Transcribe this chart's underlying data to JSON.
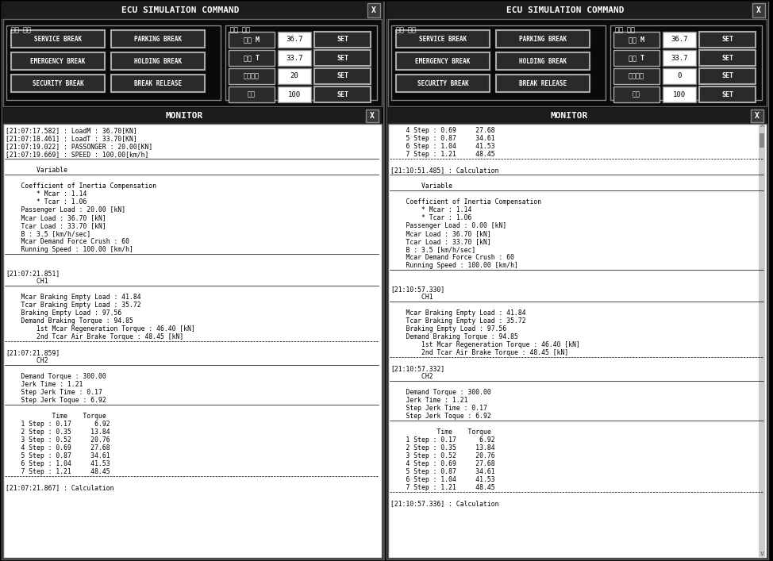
{
  "bg_color": "#000000",
  "panel_bg": "#1a1a1a",
  "text_color": "#ffffff",
  "button_color": "#2a2a2a",
  "button_border": "#888888",
  "input_bg": "#ffffff",
  "input_text": "#000000",
  "title_bg": "#1a1a1a",
  "monitor_bg": "#ffffff",
  "monitor_text": "#000000",
  "left_panel": {
    "title": "ECU SIMULATION COMMAND",
    "brake_group_label": "제동 종류",
    "load_group_label": "하중 종류",
    "buttons_left": [
      "SERVICE BREAK",
      "EMERGENCY BREAK",
      "SECURITY BREAK"
    ],
    "buttons_right": [
      "PARKING BREAK",
      "HOLDING BREAK",
      "BREAK RELEASE"
    ],
    "load_labels": [
      "하중 M",
      "하중 T",
      "승객하중",
      "속도"
    ],
    "load_values": [
      "36.7",
      "33.7",
      "20",
      "100"
    ],
    "set_label": "SET",
    "monitor_title": "MONITOR",
    "monitor_lines": [
      "[21:07:17.582] : LoadM : 36.70[KN]",
      "[21:07:18.461] : LoadT : 33.70[KN]",
      "[21:07:19.022] : PASSONGER : 20.00[KN]",
      "[21:07:19.669] : SPEED : 100.00[km/h]",
      "--------------------------------------------",
      "        Variable",
      "--------------------------------------------",
      "    Coefficient of Inertia Compensation",
      "        * Mcar : 1.14",
      "        * Tcar : 1.06",
      "    Passenger Load : 20.00 [kN]",
      "    Mcar Load : 36.70 [kN]",
      "    Tcar Load : 33.70 [kN]",
      "    B : 3.5 [km/h/sec]",
      "    Mcar Demand Force Crush : 60",
      "    Running Speed : 100.00 [km/h]",
      "--------------------------------------------",
      "",
      "[21:07:21.851]",
      "        CH1",
      "--------------------------------------------",
      "    Mcar Braking Empty Load : 41.84",
      "    Tcar Braking Empty Load : 35.72",
      "    Braking Empty Load : 97.56",
      "    Demand Braking Torque : 94.85",
      "        1st Mcar Regeneration Torque : 46.40 [kN]",
      "        2nd Tcar Air Brake Torque : 48.45 [kN]",
      "= = = = = = = = = = = = = = = = = = = = = = = = = = = = = =",
      "[21:07:21.859]",
      "        CH2",
      "--------------------------------------------",
      "    Demand Torque : 300.00",
      "    Jerk Time : 1.21",
      "    Step Jerk Time : 0.17",
      "    Step Jerk Toque : 6.92",
      "--------------------------------------------",
      "            Time    Torque",
      "    1 Step : 0.17      6.92",
      "    2 Step : 0.35     13.84",
      "    3 Step : 0.52     20.76",
      "    4 Step : 0.69     27.68",
      "    5 Step : 0.87     34.61",
      "    6 Step : 1.04     41.53",
      "    7 Step : 1.21     48.45",
      "= = = = = = = = = = = = = = = = = = = = = = = = = = = = = =",
      "[21:07:21.867] : Calculation"
    ]
  },
  "right_panel": {
    "title": "ECU SIMULATION COMMAND",
    "brake_group_label": "제동 종류",
    "load_group_label": "하중 종류",
    "buttons_left": [
      "SERVICE BREAK",
      "EMERGENCY BREAK",
      "SECURITY BREAK"
    ],
    "buttons_right": [
      "PARKING BREAK",
      "HOLDING BREAK",
      "BREAK RELEASE"
    ],
    "load_labels": [
      "하중 M",
      "하중 T",
      "승객하중",
      "속도"
    ],
    "load_values": [
      "36.7",
      "33.7",
      "0",
      "100"
    ],
    "set_label": "SET",
    "monitor_title": "MONITOR",
    "monitor_lines": [
      "    4 Step : 0.69     27.68",
      "    5 Step : 0.87     34.61",
      "    6 Step : 1.04     41.53",
      "    7 Step : 1.21     48.45",
      "= = = = = = = = = = = = = = = = = = = = = = = = = = = = = =",
      "[21:10:51.485] : Calculation",
      "--------------------------------------------",
      "        Variable",
      "--------------------------------------------",
      "    Coefficient of Inertia Compensation",
      "        * Mcar : 1.14",
      "        * Tcar : 1.06",
      "    Passenger Load : 0.00 [kN]",
      "    Mcar Load : 36.70 [kN]",
      "    Tcar Load : 33.70 [kN]",
      "    B : 3.5 [km/h/sec]",
      "    Mcar Demand Force Crush : 60",
      "    Running Speed : 100.00 [km/h]",
      "--------------------------------------------",
      "",
      "[21:10:57.330]",
      "        CH1",
      "--------------------------------------------",
      "    Mcar Braking Empty Load : 41.84",
      "    Tcar Braking Empty Load : 35.72",
      "    Braking Empty Load : 97.56",
      "    Demand Braking Torque : 94.85",
      "        1st Mcar Regeneration Torque : 46.40 [kN]",
      "        2nd Tcar Air Brake Torque : 48.45 [kN]",
      "= = = = = = = = = = = = = = = = = = = = = = = = = = = = = =",
      "[21:10:57.332]",
      "        CH2",
      "--------------------------------------------",
      "    Demand Torque : 300.00",
      "    Jerk Time : 1.21",
      "    Step Jerk Time : 0.17",
      "    Step Jerk Toque : 6.92",
      "--------------------------------------------",
      "            Time    Torque",
      "    1 Step : 0.17      6.92",
      "    2 Step : 0.35     13.84",
      "    3 Step : 0.52     20.76",
      "    4 Step : 0.69     27.68",
      "    5 Step : 0.87     34.61",
      "    6 Step : 1.04     41.53",
      "    7 Step : 1.21     48.45",
      "= = = = = = = = = = = = = = = = = = = = = = = = = = = = = =",
      "[21:10:57.336] : Calculation"
    ],
    "has_scrollbar": true
  }
}
